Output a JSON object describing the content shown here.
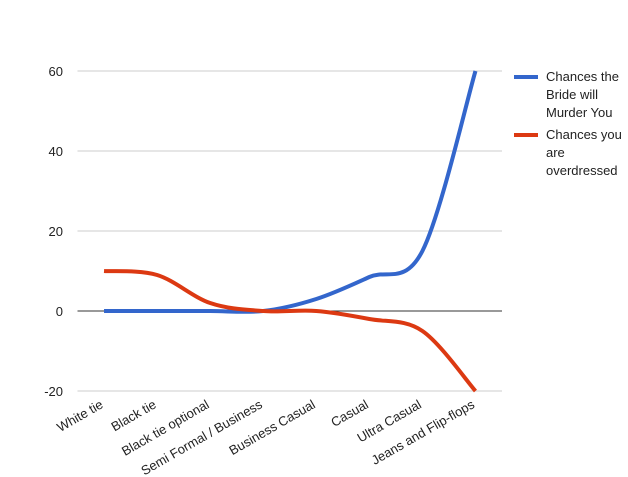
{
  "chart_data": {
    "type": "line",
    "categories": [
      "White tie",
      "Black tie",
      "Black tie optional",
      "Semi Formal / Business",
      "Business Casual",
      "Casual",
      "Ultra Casual",
      "Jeans and Flip-flops"
    ],
    "series": [
      {
        "name": "Chances the Bride will Murder You",
        "color": "#3366cc",
        "values": [
          0,
          0,
          0,
          0,
          3,
          8.5,
          15,
          60
        ]
      },
      {
        "name": "Chances you are overdressed",
        "color": "#dc3912",
        "values": [
          10,
          9,
          2,
          0,
          0,
          -2,
          -5,
          -20
        ]
      }
    ],
    "ylim": [
      -20,
      60
    ],
    "yticks": [
      -20,
      0,
      20,
      40,
      60
    ],
    "grid": true,
    "legend": "right"
  }
}
